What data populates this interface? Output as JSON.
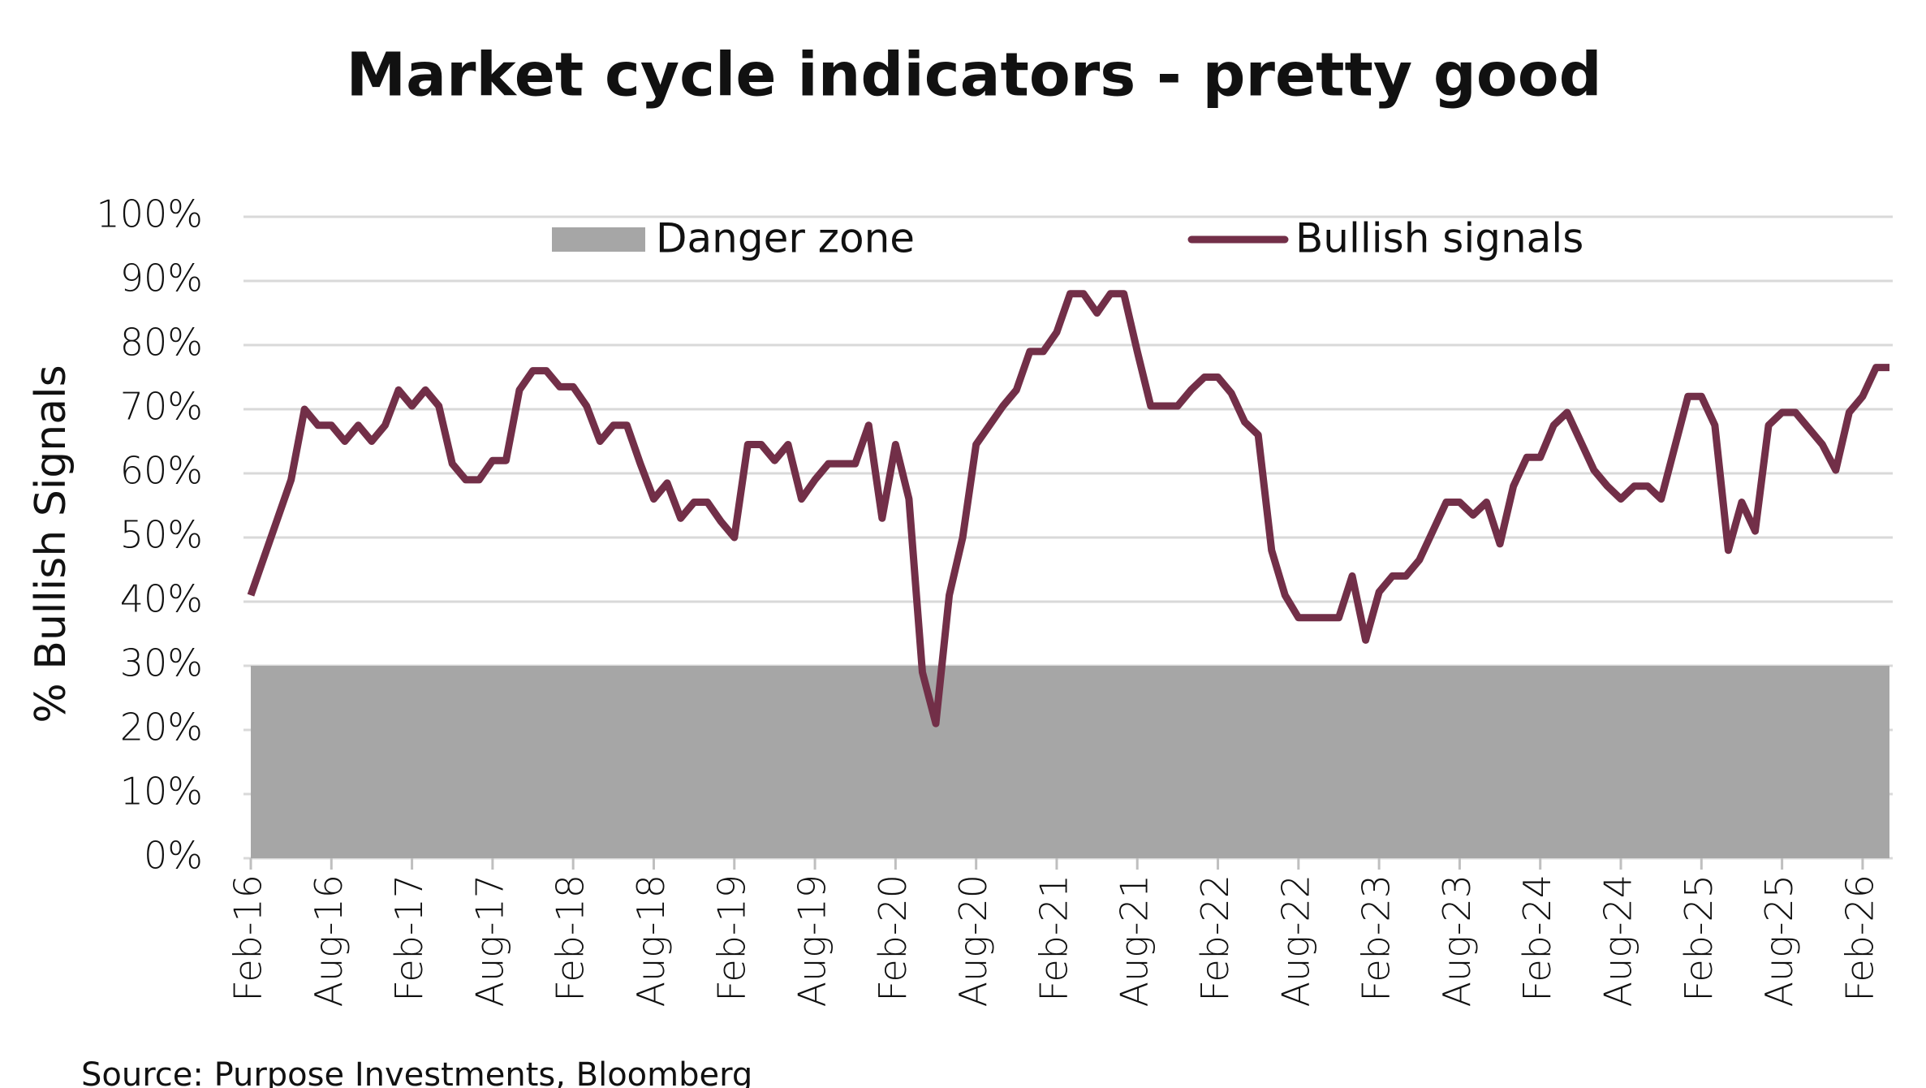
{
  "chart_data": {
    "type": "line",
    "title": "Market cycle indicators - pretty good",
    "y_label": "% Bullish Signals",
    "source": "Source: Purpose Investments, Bloomberg",
    "categories": [
      "Feb-16",
      null,
      null,
      null,
      null,
      null,
      "Aug-16",
      null,
      null,
      null,
      null,
      null,
      "Feb-17",
      null,
      null,
      null,
      null,
      null,
      "Aug-17",
      null,
      null,
      null,
      null,
      null,
      "Feb-18",
      null,
      null,
      null,
      null,
      null,
      "Aug-18",
      null,
      null,
      null,
      null,
      null,
      "Feb-19",
      null,
      null,
      null,
      null,
      null,
      "Aug-19",
      null,
      null,
      null,
      null,
      null,
      "Feb-20",
      null,
      null,
      null,
      null,
      null,
      "Aug-20",
      null,
      null,
      null,
      null,
      null,
      "Feb-21",
      null,
      null,
      null,
      null,
      null,
      "Aug-21",
      null,
      null,
      null,
      null,
      null,
      "Feb-22",
      null,
      null,
      null,
      null,
      null,
      "Aug-22",
      null,
      null,
      null,
      null,
      null,
      "Feb-23",
      null,
      null,
      null,
      null,
      null,
      "Aug-23",
      null,
      null,
      null,
      null,
      null,
      "Feb-24",
      null,
      null,
      null,
      null,
      null,
      "Aug-24",
      null,
      null,
      null,
      null,
      null,
      "Feb-25",
      null,
      null,
      null,
      null,
      null,
      "Aug-25",
      null,
      null,
      null,
      null,
      null,
      "Feb-26",
      null,
      null
    ],
    "series": [
      {
        "name": "Danger zone",
        "color": "#a6a6a6",
        "kind": "area",
        "values": [
          30,
          30,
          30,
          30,
          30,
          30,
          30,
          30,
          30,
          30,
          30,
          30,
          30,
          30,
          30,
          30,
          30,
          30,
          30,
          30,
          30,
          30,
          30,
          30,
          30,
          30,
          30,
          30,
          30,
          30,
          30,
          30,
          30,
          30,
          30,
          30,
          30,
          30,
          30,
          30,
          30,
          30,
          30,
          30,
          30,
          30,
          30,
          30,
          30,
          30,
          30,
          30,
          30,
          30,
          30,
          30,
          30,
          30,
          30,
          30,
          30,
          30,
          30,
          30,
          30,
          30,
          30,
          30,
          30,
          30,
          30,
          30,
          30,
          30,
          30,
          30,
          30,
          30,
          30,
          30,
          30,
          30,
          30,
          30,
          30,
          30,
          30,
          30,
          30,
          30,
          30,
          30,
          30,
          30,
          30,
          30,
          30,
          30,
          30,
          30,
          30,
          30,
          30,
          30,
          30,
          30,
          30,
          30,
          30,
          30,
          30,
          30,
          30,
          30,
          30,
          30,
          30,
          30,
          30,
          30,
          30,
          30,
          30
        ]
      },
      {
        "name": "Bullish signals",
        "color": "#722f48",
        "kind": "line",
        "values": [
          41,
          47,
          53,
          59,
          70,
          67.5,
          67.5,
          65,
          67.5,
          65,
          67.5,
          73,
          70.5,
          73,
          70.5,
          61.5,
          59,
          59,
          62,
          62,
          73,
          76,
          76,
          73.5,
          73.5,
          70.5,
          65,
          67.5,
          67.5,
          61.5,
          56,
          58.5,
          53,
          55.5,
          55.5,
          52.5,
          50,
          64.5,
          64.5,
          62,
          64.5,
          56,
          59,
          61.5,
          61.5,
          61.5,
          67.5,
          53,
          64.5,
          56,
          29,
          21,
          41,
          50,
          64.5,
          67.5,
          70.5,
          73,
          79,
          79,
          82,
          88,
          88,
          85,
          88,
          88,
          79,
          70.5,
          70.5,
          70.5,
          73,
          75,
          75,
          72.5,
          68,
          66,
          48,
          41,
          37.5,
          37.5,
          37.5,
          37.5,
          44,
          34,
          41.5,
          44,
          44,
          46.5,
          51,
          55.5,
          55.5,
          53.5,
          55.5,
          49,
          58,
          62.5,
          62.5,
          67.5,
          69.5,
          65,
          60.5,
          58,
          56,
          58,
          58,
          56,
          64,
          72,
          72,
          67.5,
          48,
          55.5,
          51,
          67.5,
          69.5,
          69.5,
          67,
          64.5,
          60.5,
          69.5,
          72,
          76.5,
          76.5
        ]
      }
    ],
    "ylim": [
      0,
      100
    ],
    "yticks": [
      {
        "value": 0,
        "label": "0%"
      },
      {
        "value": 10,
        "label": "10%"
      },
      {
        "value": 20,
        "label": "20%"
      },
      {
        "value": 30,
        "label": "30%"
      },
      {
        "value": 40,
        "label": "40%"
      },
      {
        "value": 50,
        "label": "50%"
      },
      {
        "value": 60,
        "label": "60%"
      },
      {
        "value": 70,
        "label": "70%"
      },
      {
        "value": 80,
        "label": "80%"
      },
      {
        "value": 90,
        "label": "90%"
      },
      {
        "value": 100,
        "label": "100%"
      }
    ],
    "grid": true
  }
}
